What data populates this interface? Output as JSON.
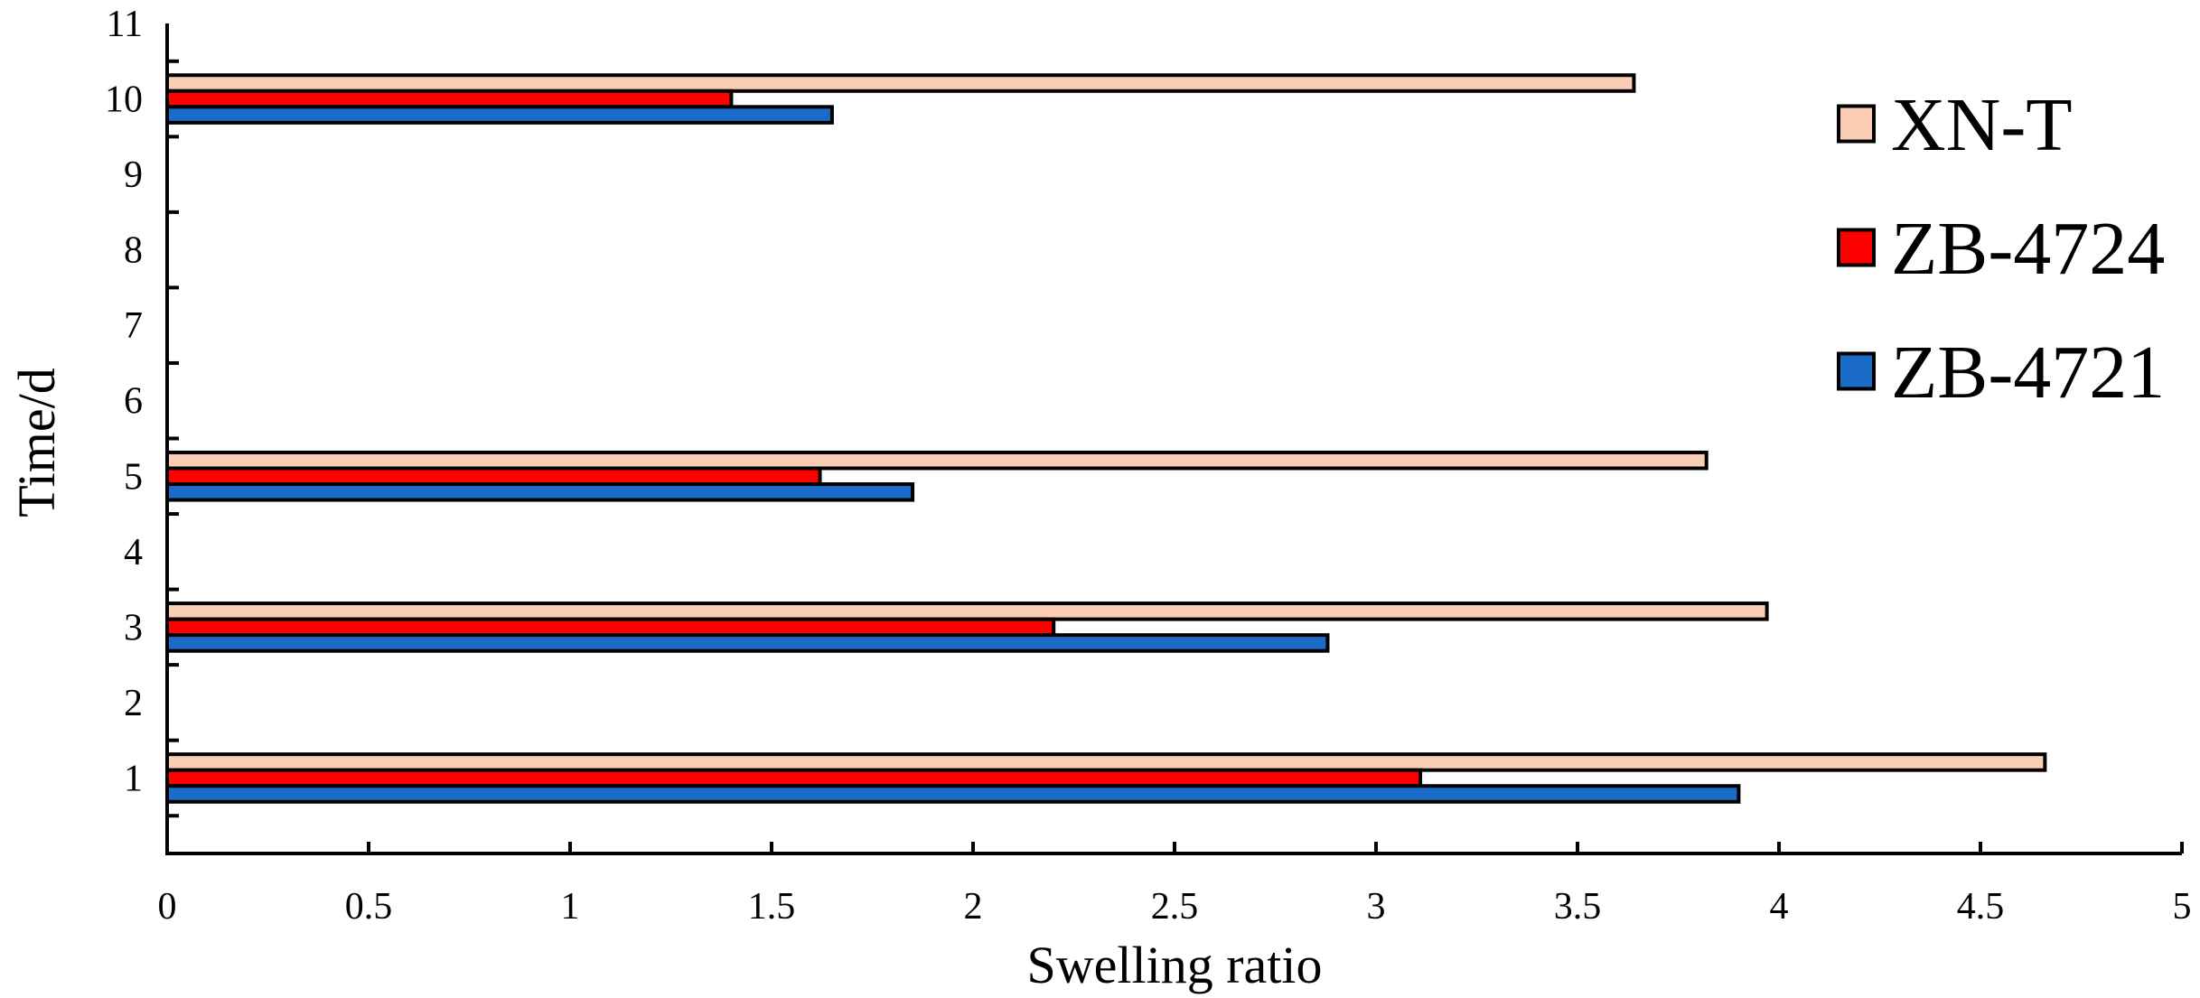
{
  "chart_data": {
    "type": "bar",
    "orientation": "horizontal",
    "title": "",
    "xlabel": "Swelling ratio",
    "ylabel": "Time/d",
    "xlim": [
      0,
      5
    ],
    "ylim": [
      0,
      11
    ],
    "x_ticks": [
      "0",
      "0.5",
      "1",
      "1.5",
      "2",
      "2.5",
      "3",
      "3.5",
      "4",
      "4.5",
      "5"
    ],
    "y_ticks": [
      "1",
      "2",
      "3",
      "4",
      "5",
      "6",
      "7",
      "8",
      "9",
      "10",
      "11"
    ],
    "categories": [
      1,
      3,
      5,
      10
    ],
    "series": [
      {
        "name": "XN-T",
        "color": "#FBCDB4",
        "values": [
          4.66,
          3.97,
          3.82,
          3.64
        ]
      },
      {
        "name": "ZB-4724",
        "color": "#FF0000",
        "values": [
          3.11,
          2.2,
          1.62,
          1.4
        ]
      },
      {
        "name": "ZB-4721",
        "color": "#1B6BC8",
        "values": [
          3.9,
          2.88,
          1.85,
          1.65
        ]
      }
    ],
    "legend_position": "right",
    "grid": false
  }
}
